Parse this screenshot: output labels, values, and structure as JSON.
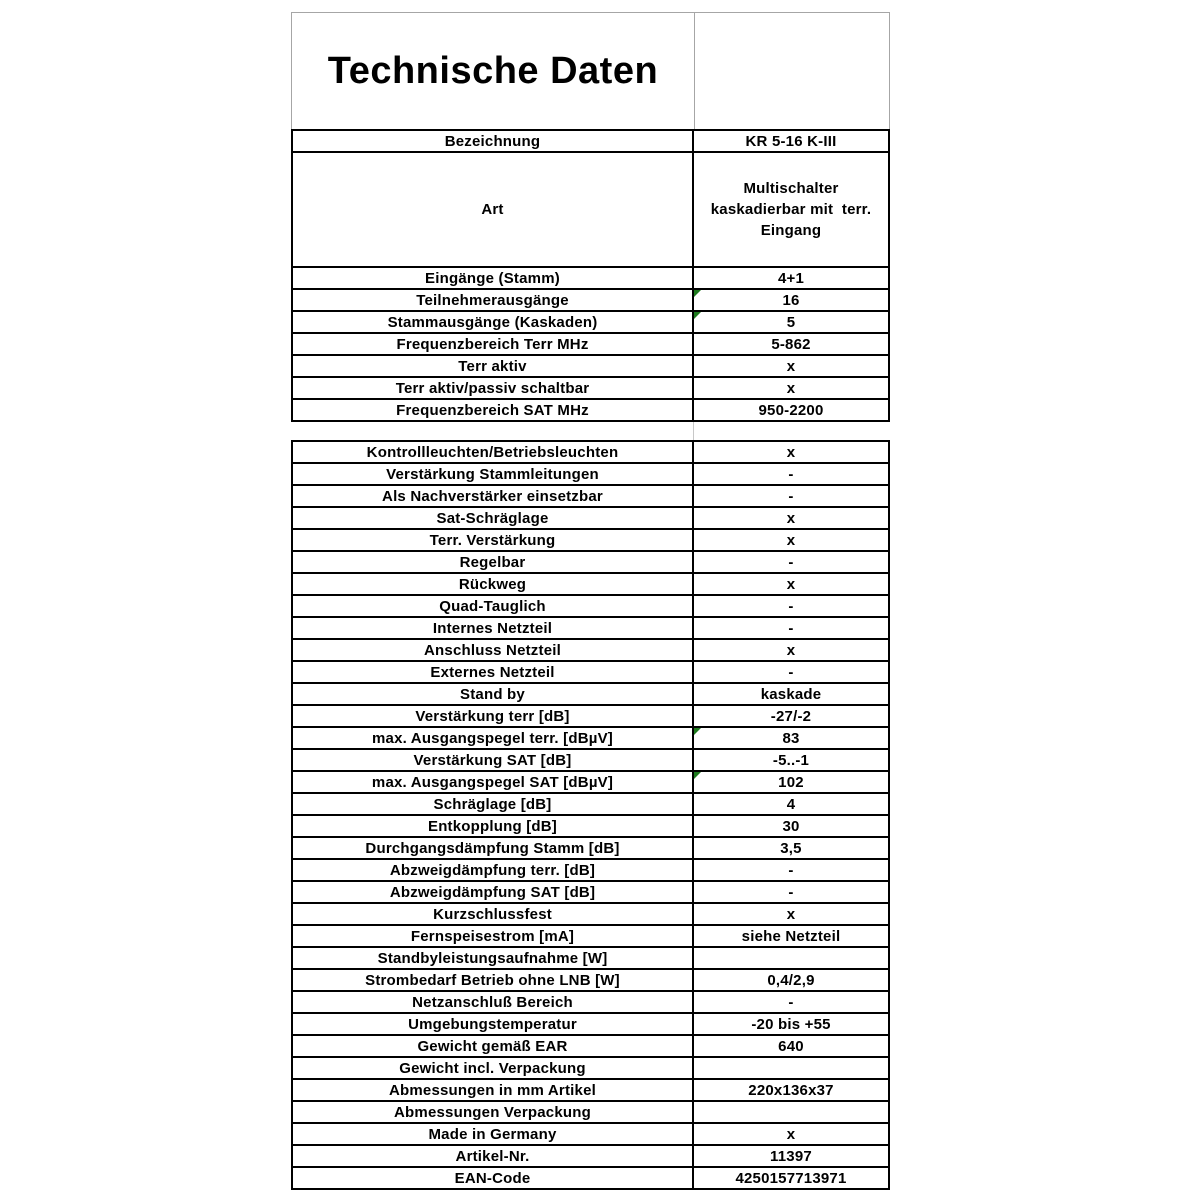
{
  "page": {
    "title": "Technische Daten"
  },
  "colors": {
    "line": "#000000",
    "grid_gray": "#a6a6a6",
    "gap_gray": "#c8c8c8",
    "flag_green": "#1e7a1e",
    "paper": "#ffffff"
  },
  "table": {
    "sections": [
      {
        "rows": [
          {
            "label": "Bezeichnung",
            "value": "KR 5-16 K-III"
          },
          {
            "label": "Art",
            "value": "Multischalter\nkaskadierbar mit  terr.\nEingang",
            "tall": true
          },
          {
            "label": "Eingänge (Stamm)",
            "value": "4+1"
          },
          {
            "label": "Teilnehmerausgänge",
            "value": "16",
            "flag": true
          },
          {
            "label": "Stammausgänge (Kaskaden)",
            "value": "5",
            "flag": true
          },
          {
            "label": "Frequenzbereich Terr MHz",
            "value": "5-862"
          },
          {
            "label": "Terr aktiv",
            "value": "x"
          },
          {
            "label": "Terr aktiv/passiv schaltbar",
            "value": "x"
          },
          {
            "label": "Frequenzbereich SAT MHz",
            "value": "950-2200"
          }
        ]
      },
      {
        "rows": [
          {
            "label": "Kontrollleuchten/Betriebsleuchten",
            "value": "x"
          },
          {
            "label": "Verstärkung Stammleitungen",
            "value": "-"
          },
          {
            "label": "Als Nachverstärker einsetzbar",
            "value": "-"
          },
          {
            "label": "Sat-Schräglage",
            "value": "x"
          },
          {
            "label": "Terr. Verstärkung",
            "value": "x"
          },
          {
            "label": "Regelbar",
            "value": "-"
          },
          {
            "label": "Rückweg",
            "value": "x"
          },
          {
            "label": "Quad-Tauglich",
            "value": "-"
          },
          {
            "label": "Internes Netzteil",
            "value": "-"
          },
          {
            "label": "Anschluss Netzteil",
            "value": "x"
          },
          {
            "label": "Externes Netzteil",
            "value": "-"
          },
          {
            "label": "Stand by",
            "value": "kaskade"
          },
          {
            "label": "Verstärkung terr [dB]",
            "value": "-27/-2"
          },
          {
            "label": "max. Ausgangspegel terr. [dBµV]",
            "value": "83",
            "flag": true
          },
          {
            "label": "Verstärkung SAT [dB]",
            "value": "-5..-1"
          },
          {
            "label": "max. Ausgangspegel SAT [dBµV]",
            "value": "102",
            "flag": true
          },
          {
            "label": "Schräglage [dB]",
            "value": "4"
          },
          {
            "label": "Entkopplung [dB]",
            "value": "30"
          },
          {
            "label": "Durchgangsdämpfung Stamm [dB]",
            "value": "3,5"
          },
          {
            "label": "Abzweigdämpfung terr. [dB]",
            "value": "-"
          },
          {
            "label": "Abzweigdämpfung SAT [dB]",
            "value": "-"
          },
          {
            "label": "Kurzschlussfest",
            "value": "x"
          },
          {
            "label": "Fernspeisestrom [mA]",
            "value": "siehe Netzteil"
          },
          {
            "label": "Standbyleistungsaufnahme [W]",
            "value": ""
          },
          {
            "label": "Strombedarf Betrieb ohne LNB [W]",
            "value": "0,4/2,9"
          },
          {
            "label": "Netzanschluß Bereich",
            "value": "-"
          },
          {
            "label": "Umgebungstemperatur",
            "value": "-20 bis +55"
          },
          {
            "label": "Gewicht gemäß EAR",
            "value": "640"
          },
          {
            "label": "Gewicht incl. Verpackung",
            "value": ""
          },
          {
            "label": "Abmessungen in mm Artikel",
            "value": "220x136x37"
          },
          {
            "label": "Abmessungen Verpackung",
            "value": ""
          },
          {
            "label": "Made in Germany",
            "value": "x"
          },
          {
            "label": "Artikel-Nr.",
            "value": "11397"
          },
          {
            "label": "EAN-Code",
            "value": "4250157713971"
          }
        ]
      }
    ]
  }
}
